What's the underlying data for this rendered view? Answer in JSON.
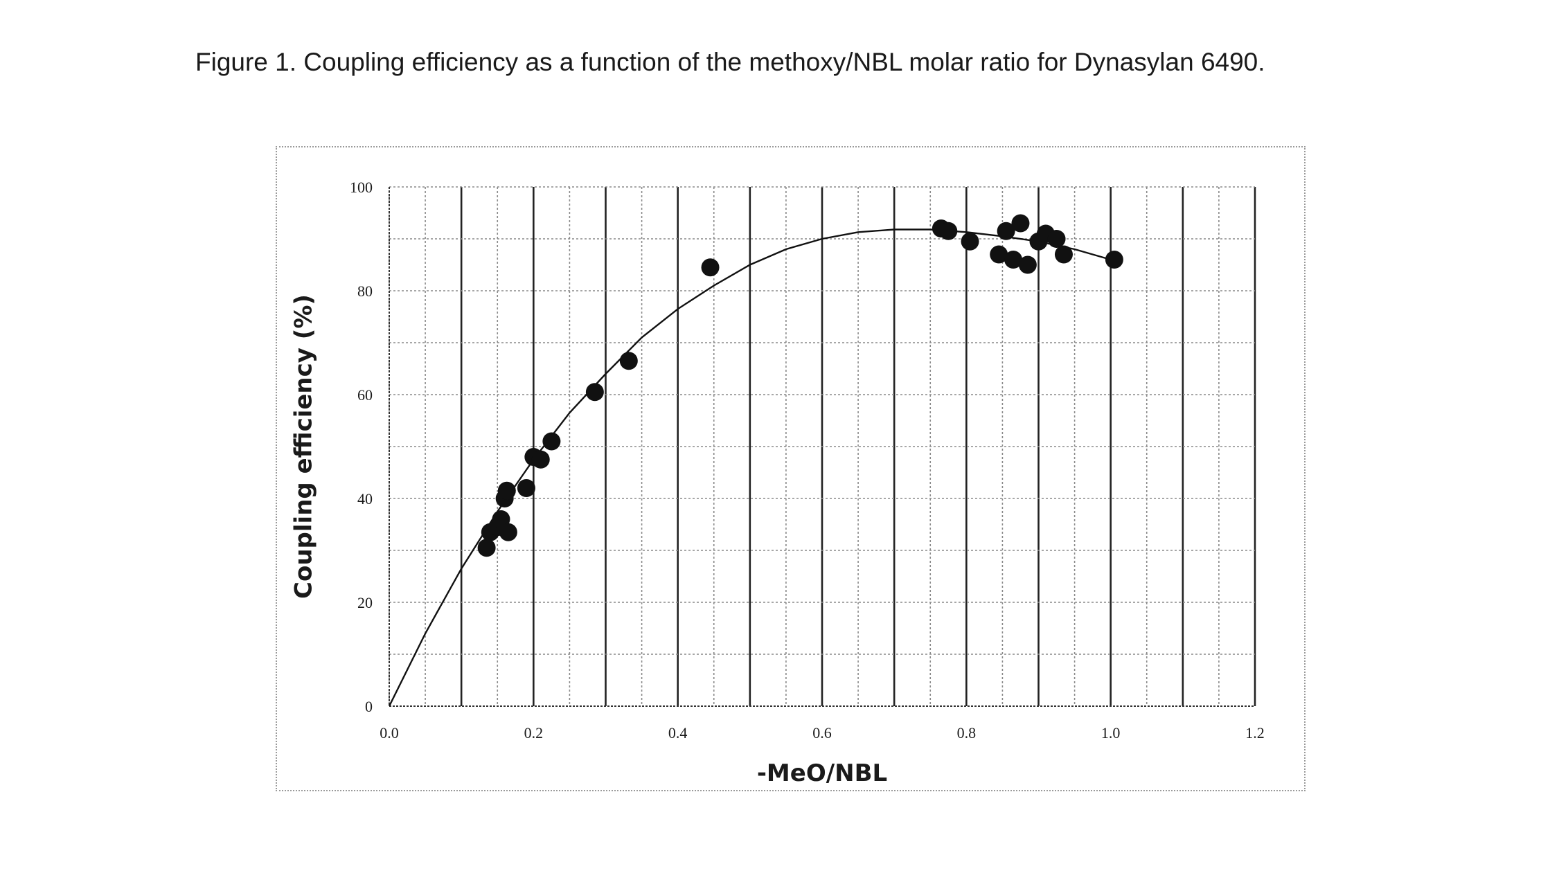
{
  "caption": "Figure 1. Coupling efficiency as a function of the methoxy/NBL molar ratio for Dynasylan 6490.",
  "chart_data": {
    "type": "scatter",
    "title": "",
    "xlabel": "-MeO/NBL",
    "ylabel": "Coupling efficiency (%)",
    "xlim": [
      0,
      1.2
    ],
    "ylim": [
      0,
      100
    ],
    "x_ticks": [
      "0.0",
      "0.2",
      "0.4",
      "0.6",
      "0.8",
      "1.0",
      "1.2"
    ],
    "y_ticks": [
      "0",
      "20",
      "40",
      "60",
      "80",
      "100"
    ],
    "grid": true,
    "legend": "none",
    "series": [
      {
        "type": "scatter",
        "color": "#111111",
        "points": [
          {
            "x": 0.135,
            "y": 30.5
          },
          {
            "x": 0.14,
            "y": 33.5
          },
          {
            "x": 0.15,
            "y": 34.5
          },
          {
            "x": 0.155,
            "y": 36
          },
          {
            "x": 0.16,
            "y": 40
          },
          {
            "x": 0.163,
            "y": 41.5
          },
          {
            "x": 0.165,
            "y": 33.5
          },
          {
            "x": 0.19,
            "y": 42
          },
          {
            "x": 0.2,
            "y": 48
          },
          {
            "x": 0.21,
            "y": 47.5
          },
          {
            "x": 0.225,
            "y": 51
          },
          {
            "x": 0.285,
            "y": 60.5
          },
          {
            "x": 0.332,
            "y": 66.5
          },
          {
            "x": 0.445,
            "y": 84.5
          },
          {
            "x": 0.765,
            "y": 92
          },
          {
            "x": 0.775,
            "y": 91.5
          },
          {
            "x": 0.805,
            "y": 89.5
          },
          {
            "x": 0.845,
            "y": 87
          },
          {
            "x": 0.855,
            "y": 91.5
          },
          {
            "x": 0.865,
            "y": 86
          },
          {
            "x": 0.875,
            "y": 93
          },
          {
            "x": 0.885,
            "y": 85
          },
          {
            "x": 0.9,
            "y": 89.5
          },
          {
            "x": 0.91,
            "y": 91
          },
          {
            "x": 0.925,
            "y": 90
          },
          {
            "x": 0.935,
            "y": 87
          },
          {
            "x": 1.005,
            "y": 86
          }
        ]
      },
      {
        "type": "line",
        "color": "#111111",
        "points": [
          {
            "x": 0.0,
            "y": 0
          },
          {
            "x": 0.05,
            "y": 14
          },
          {
            "x": 0.1,
            "y": 26.5
          },
          {
            "x": 0.15,
            "y": 37.5
          },
          {
            "x": 0.2,
            "y": 47.5
          },
          {
            "x": 0.25,
            "y": 56.5
          },
          {
            "x": 0.3,
            "y": 64
          },
          {
            "x": 0.35,
            "y": 71
          },
          {
            "x": 0.4,
            "y": 76.5
          },
          {
            "x": 0.45,
            "y": 81
          },
          {
            "x": 0.5,
            "y": 85
          },
          {
            "x": 0.55,
            "y": 88
          },
          {
            "x": 0.6,
            "y": 90
          },
          {
            "x": 0.65,
            "y": 91.3
          },
          {
            "x": 0.7,
            "y": 91.8
          },
          {
            "x": 0.75,
            "y": 91.8
          },
          {
            "x": 0.8,
            "y": 91.3
          },
          {
            "x": 0.85,
            "y": 90.5
          },
          {
            "x": 0.9,
            "y": 89.5
          },
          {
            "x": 0.95,
            "y": 88
          },
          {
            "x": 1.0,
            "y": 86
          }
        ]
      }
    ]
  }
}
